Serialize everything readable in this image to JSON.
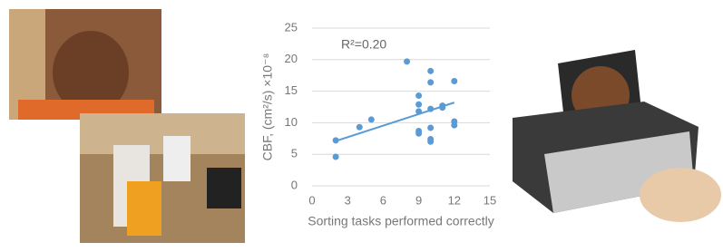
{
  "chart_data": {
    "type": "scatter",
    "xlabel": "Sorting tasks performed correctly",
    "ylabel": "CBF, (cm²/s) ×10⁻⁸",
    "annotation": "R²=0.20",
    "x": [
      2,
      2,
      4,
      5,
      8,
      9,
      9,
      9,
      9,
      9,
      10,
      10,
      10,
      10,
      10,
      10,
      11,
      11,
      12,
      12,
      12
    ],
    "values": [
      7.2,
      4.6,
      9.3,
      10.5,
      19.7,
      14.3,
      12.9,
      11.8,
      8.7,
      8.3,
      18.2,
      16.4,
      12.2,
      9.2,
      7.4,
      7.0,
      12.7,
      12.4,
      16.6,
      10.2,
      9.6
    ],
    "color": "#5b9bd5",
    "trendline": {
      "x": [
        2,
        12
      ],
      "values": [
        7.1,
        13.2
      ]
    },
    "xlim": [
      0,
      15
    ],
    "xticks": [
      0,
      3,
      6,
      9,
      12,
      15
    ],
    "ylim": [
      0,
      25
    ],
    "yticks": [
      0,
      5,
      10,
      15,
      20,
      25
    ],
    "grid": true
  }
}
